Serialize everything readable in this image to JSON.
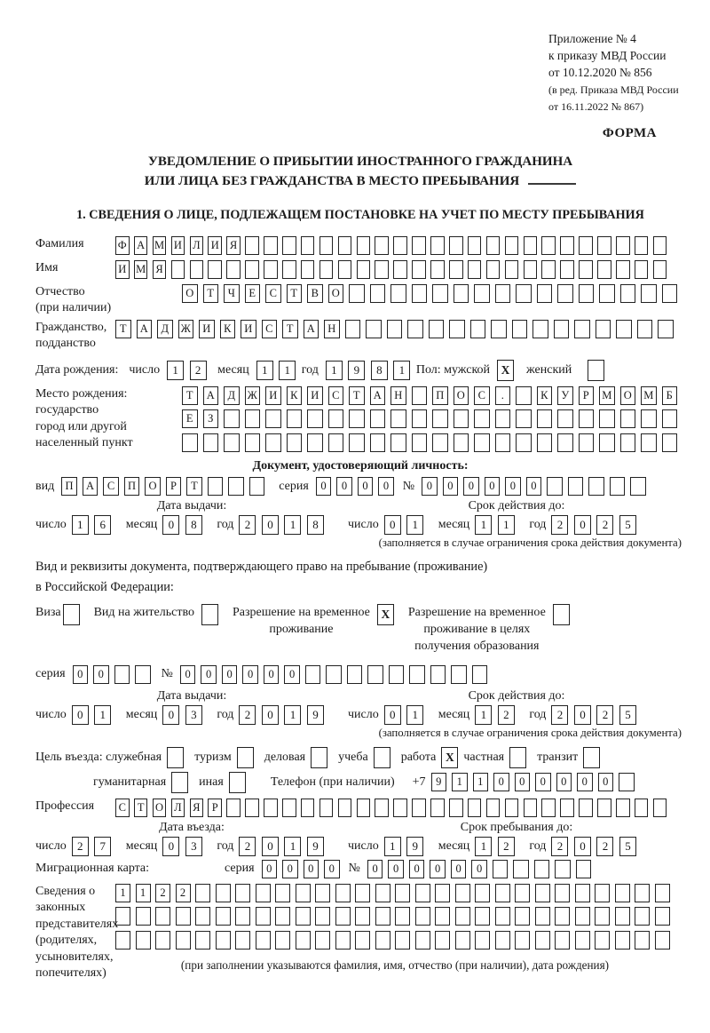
{
  "header": {
    "annex_lines": [
      "Приложение № 4",
      "к приказу МВД России",
      "от 10.12.2020 № 856"
    ],
    "edit_lines": [
      "(в ред. Приказа МВД России",
      "от 16.11.2022 № 867)"
    ],
    "form_label": "ФОРМА"
  },
  "title": {
    "line1": "УВЕДОМЛЕНИЕ О ПРИБЫТИИ ИНОСТРАННОГО ГРАЖДАНИНА",
    "line2": "ИЛИ ЛИЦА БЕЗ ГРАЖДАНСТВА В МЕСТО ПРЕБЫВАНИЯ"
  },
  "section1": {
    "heading": "1. СВЕДЕНИЯ О ЛИЦЕ, ПОДЛЕЖАЩЕМ ПОСТАНОВКЕ НА УЧЕТ ПО МЕСТУ ПРЕБЫВАНИЯ"
  },
  "fields": {
    "surname": {
      "label": "Фамилия",
      "value": "ФАМИЛИЯ",
      "count": 30
    },
    "name": {
      "label": "Имя",
      "value": "ИМЯ",
      "count": 30
    },
    "patronymic": {
      "label_line1": "Отчество",
      "label_line2": "(при наличии)",
      "value": "ОТЧЕСТВО",
      "count": 24
    },
    "citizenship": {
      "label_line1": "Гражданство,",
      "label_line2": "подданство",
      "value": "ТАДЖИКИСТАН",
      "count": 27
    },
    "birth_date": {
      "label": "Дата рождения:",
      "day_label": "число",
      "day": {
        "value": "12",
        "count": 2
      },
      "month_label": "месяц",
      "month": {
        "value": "11",
        "count": 2
      },
      "year_label": "год",
      "year": {
        "value": "1981",
        "count": 4
      }
    },
    "sex": {
      "label": "Пол: мужской",
      "male_mark": "X",
      "female_label": "женский",
      "female_mark": ""
    },
    "birth_place": {
      "label_lines": [
        "Место рождения:",
        "государство",
        "город или другой",
        "населенный пункт"
      ],
      "row1": {
        "value": "ТАДЖИКИСТАН ПОС. КУРМОМБ",
        "count": 24
      },
      "row2": {
        "value": "ЕЗ",
        "count": 24
      },
      "row3": {
        "value": "",
        "count": 24
      }
    },
    "identity_doc": {
      "heading": "Документ, удостоверяющий личность:",
      "type_label": "вид",
      "type": {
        "value": "ПАСПОРТ",
        "count": 10
      },
      "series_label": "серия",
      "series": {
        "value": "0000",
        "count": 4
      },
      "number_label": "№",
      "number": {
        "value": "000000",
        "count": 11
      },
      "issue": {
        "heading": "Дата выдачи:",
        "day_label": "число",
        "day": {
          "value": "16",
          "count": 2
        },
        "month_label": "месяц",
        "month": {
          "value": "08",
          "count": 2
        },
        "year_label": "год",
        "year": {
          "value": "2018",
          "count": 4
        }
      },
      "valid": {
        "heading": "Срок действия до:",
        "day_label": "число",
        "day": {
          "value": "01",
          "count": 2
        },
        "month_label": "месяц",
        "month": {
          "value": "11",
          "count": 2
        },
        "year_label": "год",
        "year": {
          "value": "2025",
          "count": 4
        }
      },
      "valid_note": "(заполняется в случае ограничения срока действия документа)"
    },
    "residence_doc": {
      "intro_line1": "Вид и реквизиты документа, подтверждающего право на пребывание (проживание)",
      "intro_line2": "в Российской Федерации:",
      "options": [
        {
          "line1": "Виза",
          "mark": ""
        },
        {
          "line1": "Вид на жительство",
          "mark": ""
        },
        {
          "line1": "Разрешение на временное",
          "line2": "проживание",
          "mark": "X"
        },
        {
          "line1": "Разрешение на временное",
          "line2": "проживание в целях",
          "line3": "получения образования",
          "mark": ""
        }
      ],
      "series_label": "серия",
      "series": {
        "value": "00",
        "count": 4
      },
      "number_label": "№",
      "number": {
        "value": "000000",
        "count": 15
      },
      "issue": {
        "heading": "Дата выдачи:",
        "day_label": "число",
        "day": {
          "value": "01",
          "count": 2
        },
        "month_label": "месяц",
        "month": {
          "value": "03",
          "count": 2
        },
        "year_label": "год",
        "year": {
          "value": "2019",
          "count": 4
        }
      },
      "valid": {
        "heading": "Срок действия до:",
        "day_label": "число",
        "day": {
          "value": "01",
          "count": 2
        },
        "month_label": "месяц",
        "month": {
          "value": "12",
          "count": 2
        },
        "year_label": "год",
        "year": {
          "value": "2025",
          "count": 4
        }
      },
      "valid_note": "(заполняется в случае ограничения срока действия документа)"
    },
    "visit_purpose": {
      "label": "Цель въезда: служебная",
      "options_row1": [
        {
          "label": "туризм",
          "mark": ""
        },
        {
          "label": "деловая",
          "mark": ""
        },
        {
          "label": "учеба",
          "mark": ""
        },
        {
          "label": "работа",
          "mark": "X"
        },
        {
          "label": "частная",
          "mark": ""
        },
        {
          "label": "транзит",
          "mark": ""
        }
      ],
      "first_mark": "",
      "row2_label1": "гуманитарная",
      "row2_mark1": "",
      "row2_label2": "иная",
      "row2_mark2": "",
      "phone_label": "Телефон (при наличии)",
      "phone_prefix": "+7",
      "phone": {
        "value": "911000000",
        "count": 10
      }
    },
    "profession": {
      "label": "Профессия",
      "value": "СТОЛЯР",
      "count": 30
    },
    "entry": {
      "heading": "Дата въезда:",
      "day_label": "число",
      "day": {
        "value": "27",
        "count": 2
      },
      "month_label": "месяц",
      "month": {
        "value": "03",
        "count": 2
      },
      "year_label": "год",
      "year": {
        "value": "2019",
        "count": 4
      }
    },
    "stay": {
      "heading": "Срок пребывания до:",
      "day_label": "число",
      "day": {
        "value": "19",
        "count": 2
      },
      "month_label": "месяц",
      "month": {
        "value": "12",
        "count": 2
      },
      "year_label": "год",
      "year": {
        "value": "2025",
        "count": 4
      }
    },
    "migration_card": {
      "label": "Миграционная карта:",
      "series_label": "серия",
      "series": {
        "value": "0000",
        "count": 4
      },
      "number_label": "№",
      "number": {
        "value": "000000",
        "count": 11
      }
    },
    "representatives": {
      "label_lines": [
        "Сведения о",
        "законных",
        "представителях",
        "(родителях,",
        "усыновителях,",
        "попечителях)"
      ],
      "row1": {
        "value": "1122",
        "count": 28
      },
      "row2": {
        "value": "",
        "count": 28
      },
      "row3": {
        "value": "",
        "count": 28
      },
      "note": "(при заполнении указываются фамилия, имя, отчество (при наличии), дата рождения)"
    }
  }
}
